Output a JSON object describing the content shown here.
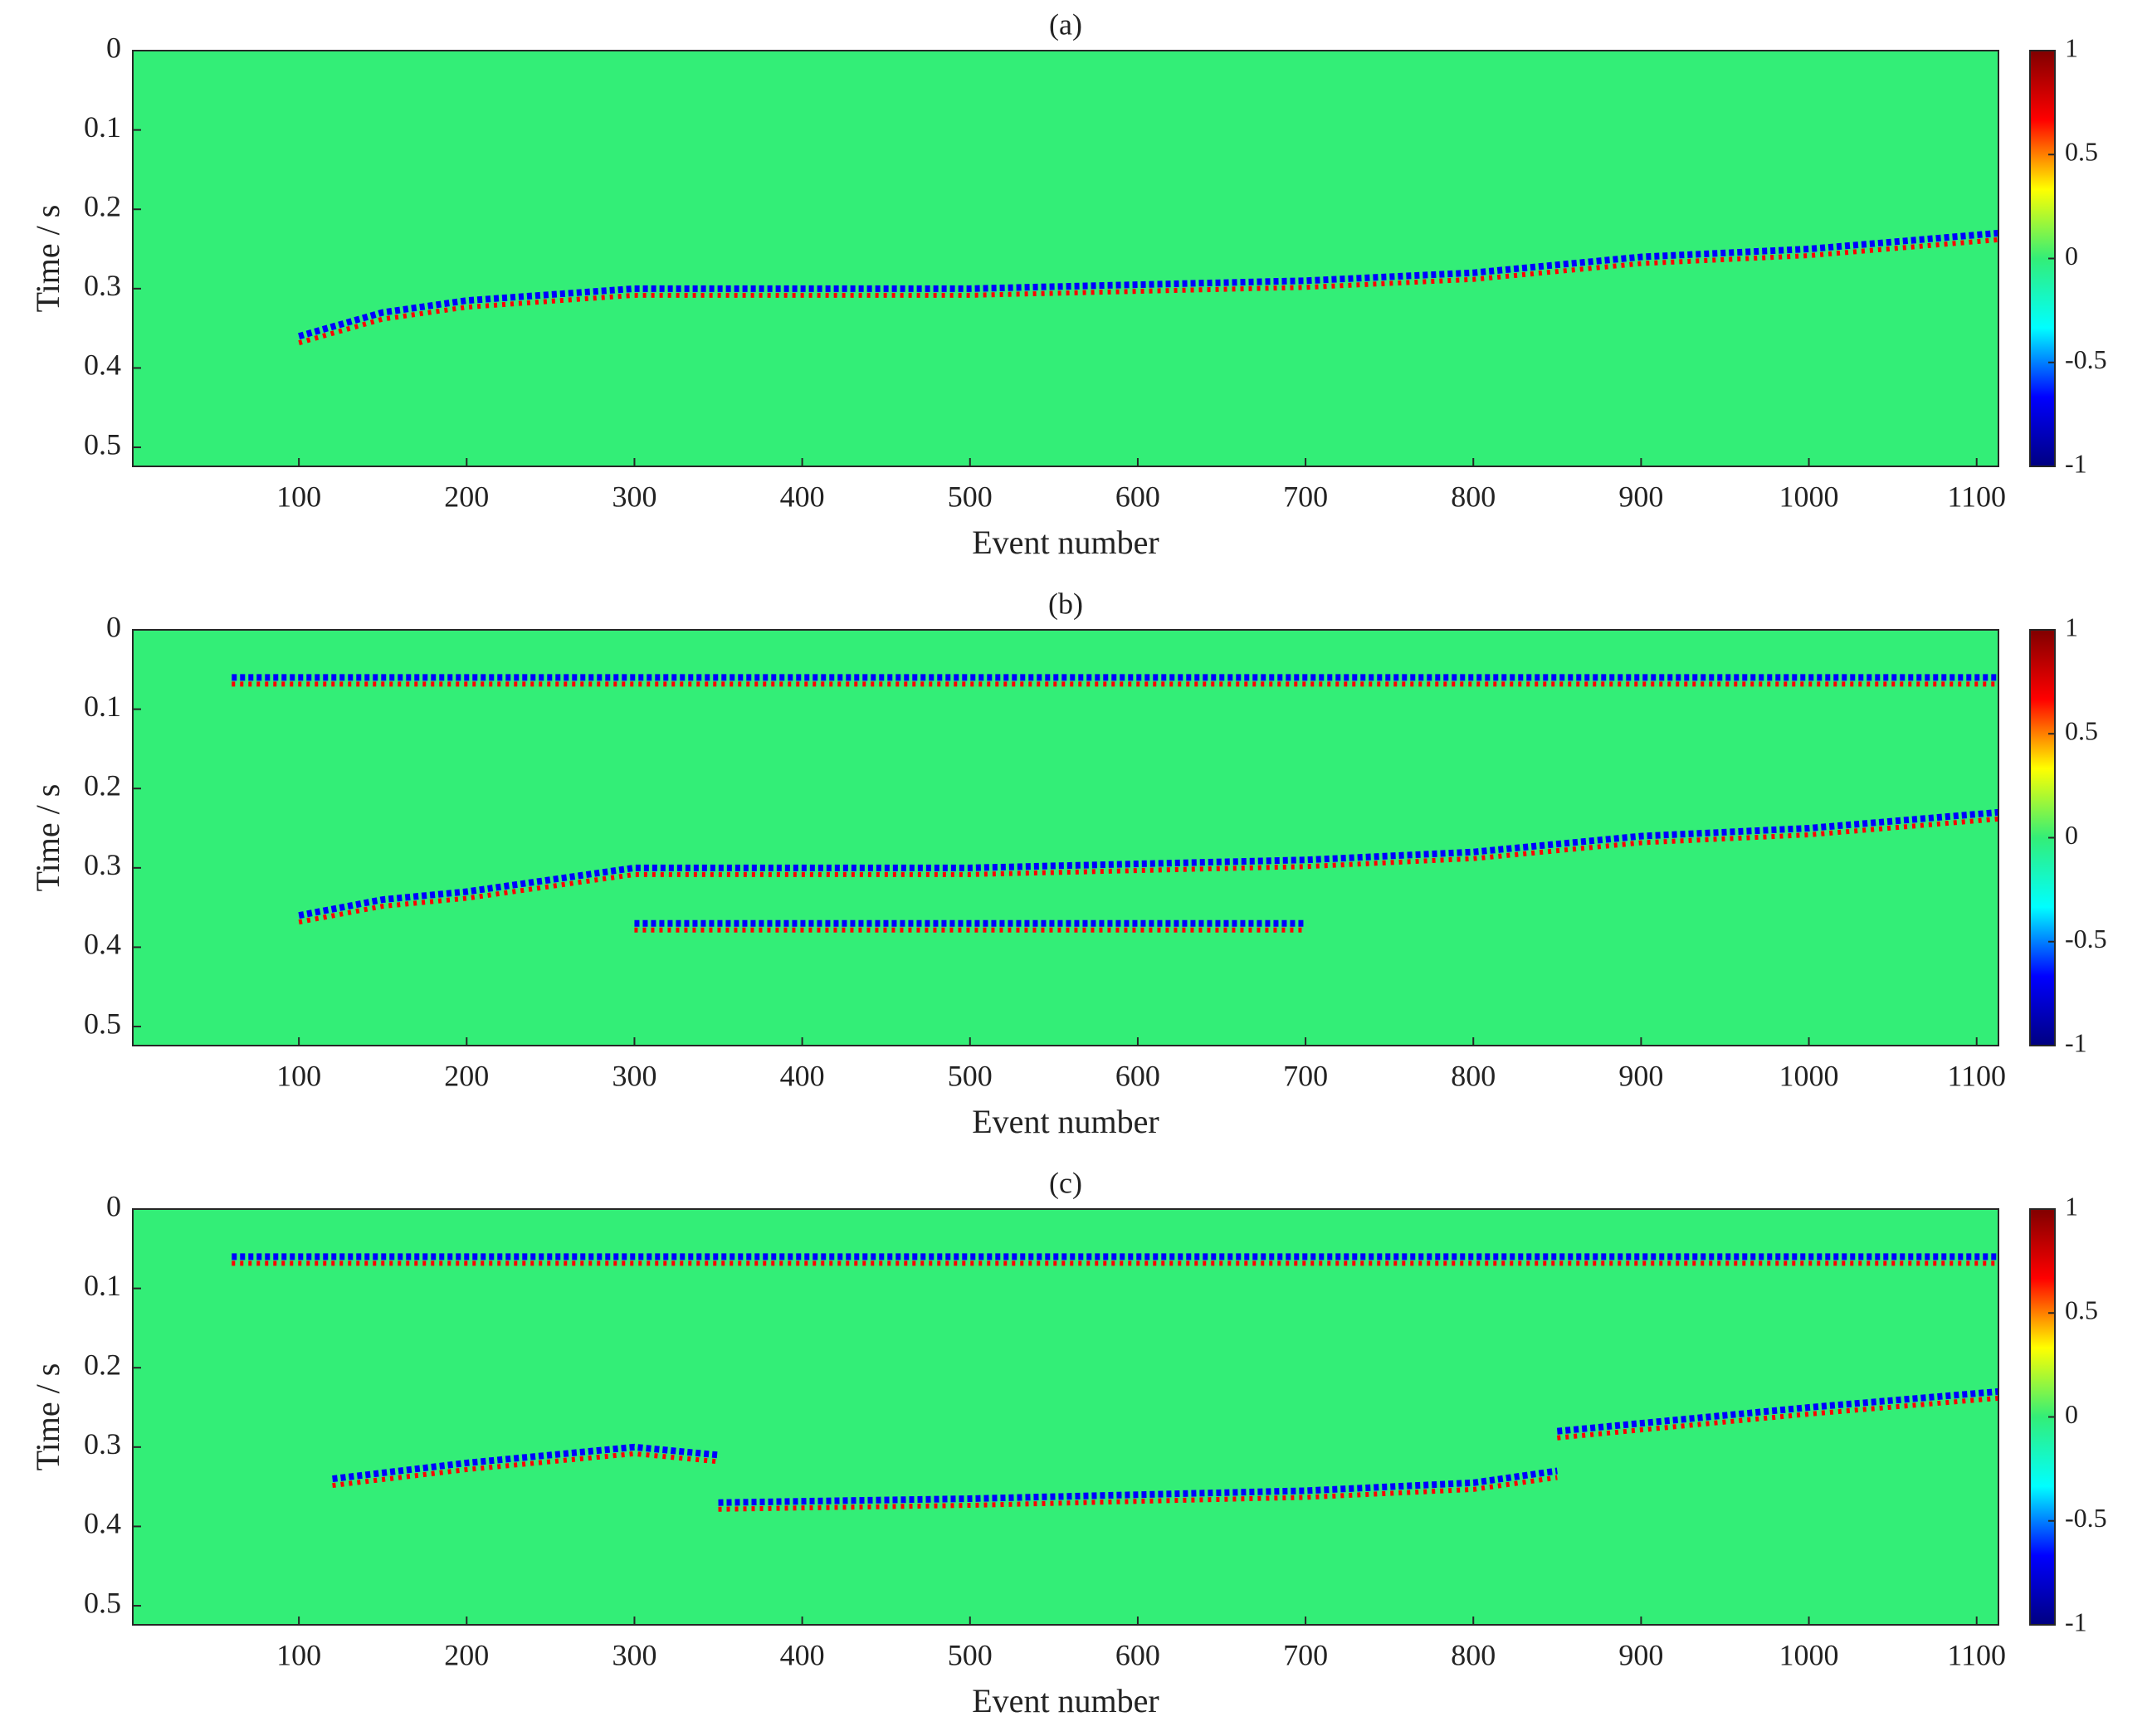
{
  "chart_data": [
    {
      "type": "heatmap",
      "title": "(a)",
      "xlabel": "Event number",
      "ylabel": "Time / s",
      "xlim": [
        1,
        1113
      ],
      "ylim": [
        0,
        0.524
      ],
      "xticks": [
        100,
        200,
        300,
        400,
        500,
        600,
        700,
        800,
        900,
        1000,
        1100
      ],
      "yticks": [
        0,
        0.1,
        0.2,
        0.3,
        0.4,
        0.5
      ],
      "clim": [
        -1,
        1
      ],
      "cticks": [
        -1,
        -0.5,
        0,
        0.5,
        1
      ],
      "colormap": [
        "#000080",
        "#0000ff",
        "#00ffff",
        "#33ee77",
        "#ffff00",
        "#ff0000",
        "#800000"
      ],
      "bands": [
        {
          "x": [
            100,
            150,
            200,
            300,
            400,
            500,
            600,
            700,
            800,
            900,
            1000,
            1113
          ],
          "values": [
            0.36,
            0.33,
            0.315,
            0.3,
            0.3,
            0.3,
            0.295,
            0.29,
            0.28,
            0.26,
            0.25,
            0.23
          ]
        }
      ]
    },
    {
      "type": "heatmap",
      "title": "(b)",
      "xlabel": "Event number",
      "ylabel": "Time / s",
      "xlim": [
        1,
        1113
      ],
      "ylim": [
        0,
        0.524
      ],
      "xticks": [
        100,
        200,
        300,
        400,
        500,
        600,
        700,
        800,
        900,
        1000,
        1100
      ],
      "yticks": [
        0,
        0.1,
        0.2,
        0.3,
        0.4,
        0.5
      ],
      "clim": [
        -1,
        1
      ],
      "cticks": [
        -1,
        -0.5,
        0,
        0.5,
        1
      ],
      "colormap": [
        "#000080",
        "#0000ff",
        "#00ffff",
        "#33ee77",
        "#ffff00",
        "#ff0000",
        "#800000"
      ],
      "bands": [
        {
          "x": [
            60,
            1113
          ],
          "values": [
            0.06,
            0.06
          ]
        },
        {
          "x": [
            100,
            150,
            200,
            300,
            400,
            500,
            600,
            700,
            800,
            900,
            1000,
            1113
          ],
          "values": [
            0.36,
            0.34,
            0.33,
            0.3,
            0.3,
            0.3,
            0.295,
            0.29,
            0.28,
            0.26,
            0.25,
            0.23
          ]
        },
        {
          "x": [
            300,
            500,
            700
          ],
          "values": [
            0.37,
            0.37,
            0.37
          ]
        }
      ]
    },
    {
      "type": "heatmap",
      "title": "(c)",
      "xlabel": "Event number",
      "ylabel": "Time / s",
      "xlim": [
        1,
        1113
      ],
      "ylim": [
        0,
        0.524
      ],
      "xticks": [
        100,
        200,
        300,
        400,
        500,
        600,
        700,
        800,
        900,
        1000,
        1100
      ],
      "yticks": [
        0,
        0.1,
        0.2,
        0.3,
        0.4,
        0.5
      ],
      "clim": [
        -1,
        1
      ],
      "cticks": [
        -1,
        -0.5,
        0,
        0.5,
        1
      ],
      "colormap": [
        "#000080",
        "#0000ff",
        "#00ffff",
        "#33ee77",
        "#ffff00",
        "#ff0000",
        "#800000"
      ],
      "bands": [
        {
          "x": [
            60,
            1113
          ],
          "values": [
            0.06,
            0.06
          ]
        },
        {
          "x": [
            120,
            200,
            300,
            350
          ],
          "values": [
            0.34,
            0.32,
            0.3,
            0.31
          ]
        },
        {
          "x": [
            350,
            500,
            700,
            800,
            850
          ],
          "values": [
            0.37,
            0.365,
            0.355,
            0.345,
            0.33
          ]
        },
        {
          "x": [
            850,
            900,
            1000,
            1113
          ],
          "values": [
            0.28,
            0.27,
            0.25,
            0.23
          ]
        }
      ]
    }
  ]
}
